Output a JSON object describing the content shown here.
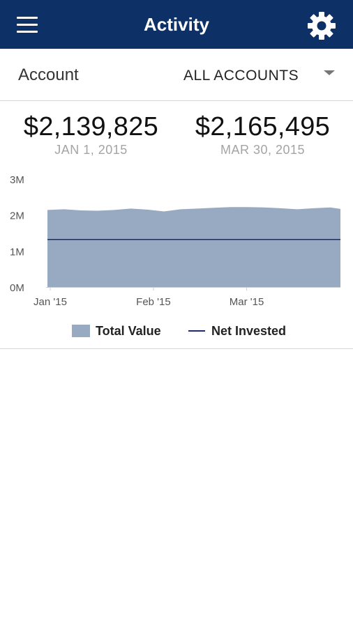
{
  "header": {
    "title": "Activity",
    "menu_icon": "hamburger-menu-icon",
    "settings_icon": "gear-icon",
    "background": "#0d3166"
  },
  "account": {
    "label": "Account",
    "selected": "ALL ACCOUNTS",
    "dropdown_icon": "caret-down-icon"
  },
  "summary": {
    "start_value": "$2,139,825",
    "start_date": "JAN 1, 2015",
    "end_value": "$2,165,495",
    "end_date": "MAR 30, 2015"
  },
  "chart_data": {
    "type": "area",
    "x": [
      "2015-01-01",
      "2015-01-06",
      "2015-01-11",
      "2015-01-16",
      "2015-01-21",
      "2015-01-26",
      "2015-01-31",
      "2015-02-05",
      "2015-02-10",
      "2015-02-15",
      "2015-02-20",
      "2015-02-25",
      "2015-03-02",
      "2015-03-07",
      "2015-03-12",
      "2015-03-17",
      "2015-03-22",
      "2015-03-27",
      "2015-03-30"
    ],
    "series": [
      {
        "name": "Total Value",
        "kind": "area",
        "color": "#98a9c2",
        "values": [
          2.14,
          2.16,
          2.13,
          2.12,
          2.14,
          2.18,
          2.15,
          2.1,
          2.16,
          2.18,
          2.2,
          2.22,
          2.22,
          2.21,
          2.19,
          2.16,
          2.19,
          2.21,
          2.17
        ]
      },
      {
        "name": "Net Invested",
        "kind": "line",
        "color": "#1a2a6b",
        "values": [
          1.32,
          1.32,
          1.32,
          1.32,
          1.32,
          1.32,
          1.32,
          1.32,
          1.32,
          1.32,
          1.32,
          1.32,
          1.32,
          1.32,
          1.32,
          1.32,
          1.32,
          1.32,
          1.32
        ]
      }
    ],
    "yticks": [
      "0M",
      "1M",
      "2M",
      "3M"
    ],
    "ytick_values": [
      0,
      1,
      2,
      3
    ],
    "xticks": [
      "Jan '15",
      "Feb '15",
      "Mar '15"
    ],
    "xtick_dates": [
      "2015-01-01",
      "2015-02-01",
      "2015-03-01"
    ],
    "ylim": [
      0,
      3
    ],
    "xlim": [
      "2015-01-01",
      "2015-03-30"
    ],
    "legend": [
      "Total Value",
      "Net Invested"
    ],
    "legend_position": "bottom",
    "grid": false
  }
}
